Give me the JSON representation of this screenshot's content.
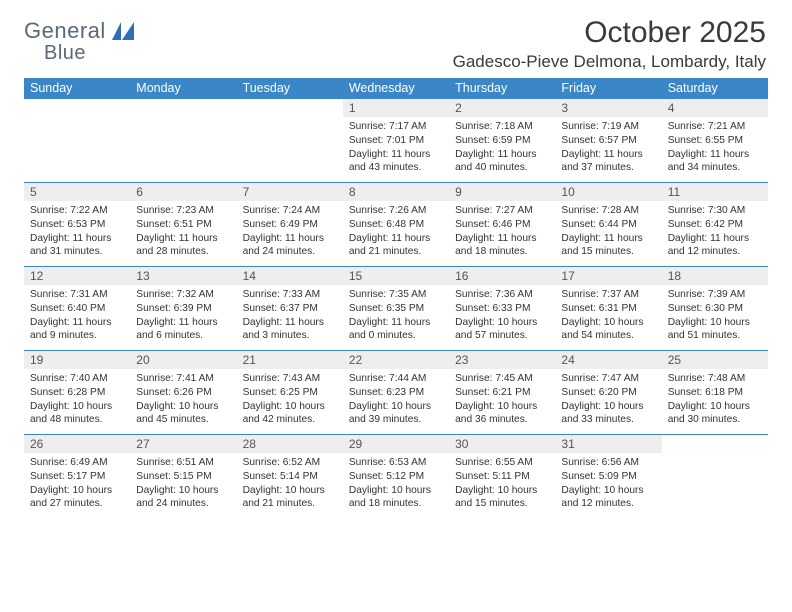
{
  "brand": {
    "word1": "General",
    "word2": "Blue"
  },
  "header": {
    "title": "October 2025",
    "subtitle": "Gadesco-Pieve Delmona, Lombardy, Italy"
  },
  "style": {
    "header_bg": "#3b86c7",
    "header_fg": "#ffffff",
    "daynum_bg": "#eeeeee",
    "row_border": "#3b86c7",
    "page_bg": "#ffffff",
    "text_color": "#333333",
    "title_fontsize": 30,
    "subtitle_fontsize": 17,
    "hdr_fontsize": 12.5,
    "cell_fontsize": 10.2
  },
  "weekdays": [
    "Sunday",
    "Monday",
    "Tuesday",
    "Wednesday",
    "Thursday",
    "Friday",
    "Saturday"
  ],
  "weeks": [
    [
      null,
      null,
      null,
      {
        "n": "1",
        "sr": "Sunrise: 7:17 AM",
        "ss": "Sunset: 7:01 PM",
        "d1": "Daylight: 11 hours",
        "d2": "and 43 minutes."
      },
      {
        "n": "2",
        "sr": "Sunrise: 7:18 AM",
        "ss": "Sunset: 6:59 PM",
        "d1": "Daylight: 11 hours",
        "d2": "and 40 minutes."
      },
      {
        "n": "3",
        "sr": "Sunrise: 7:19 AM",
        "ss": "Sunset: 6:57 PM",
        "d1": "Daylight: 11 hours",
        "d2": "and 37 minutes."
      },
      {
        "n": "4",
        "sr": "Sunrise: 7:21 AM",
        "ss": "Sunset: 6:55 PM",
        "d1": "Daylight: 11 hours",
        "d2": "and 34 minutes."
      }
    ],
    [
      {
        "n": "5",
        "sr": "Sunrise: 7:22 AM",
        "ss": "Sunset: 6:53 PM",
        "d1": "Daylight: 11 hours",
        "d2": "and 31 minutes."
      },
      {
        "n": "6",
        "sr": "Sunrise: 7:23 AM",
        "ss": "Sunset: 6:51 PM",
        "d1": "Daylight: 11 hours",
        "d2": "and 28 minutes."
      },
      {
        "n": "7",
        "sr": "Sunrise: 7:24 AM",
        "ss": "Sunset: 6:49 PM",
        "d1": "Daylight: 11 hours",
        "d2": "and 24 minutes."
      },
      {
        "n": "8",
        "sr": "Sunrise: 7:26 AM",
        "ss": "Sunset: 6:48 PM",
        "d1": "Daylight: 11 hours",
        "d2": "and 21 minutes."
      },
      {
        "n": "9",
        "sr": "Sunrise: 7:27 AM",
        "ss": "Sunset: 6:46 PM",
        "d1": "Daylight: 11 hours",
        "d2": "and 18 minutes."
      },
      {
        "n": "10",
        "sr": "Sunrise: 7:28 AM",
        "ss": "Sunset: 6:44 PM",
        "d1": "Daylight: 11 hours",
        "d2": "and 15 minutes."
      },
      {
        "n": "11",
        "sr": "Sunrise: 7:30 AM",
        "ss": "Sunset: 6:42 PM",
        "d1": "Daylight: 11 hours",
        "d2": "and 12 minutes."
      }
    ],
    [
      {
        "n": "12",
        "sr": "Sunrise: 7:31 AM",
        "ss": "Sunset: 6:40 PM",
        "d1": "Daylight: 11 hours",
        "d2": "and 9 minutes."
      },
      {
        "n": "13",
        "sr": "Sunrise: 7:32 AM",
        "ss": "Sunset: 6:39 PM",
        "d1": "Daylight: 11 hours",
        "d2": "and 6 minutes."
      },
      {
        "n": "14",
        "sr": "Sunrise: 7:33 AM",
        "ss": "Sunset: 6:37 PM",
        "d1": "Daylight: 11 hours",
        "d2": "and 3 minutes."
      },
      {
        "n": "15",
        "sr": "Sunrise: 7:35 AM",
        "ss": "Sunset: 6:35 PM",
        "d1": "Daylight: 11 hours",
        "d2": "and 0 minutes."
      },
      {
        "n": "16",
        "sr": "Sunrise: 7:36 AM",
        "ss": "Sunset: 6:33 PM",
        "d1": "Daylight: 10 hours",
        "d2": "and 57 minutes."
      },
      {
        "n": "17",
        "sr": "Sunrise: 7:37 AM",
        "ss": "Sunset: 6:31 PM",
        "d1": "Daylight: 10 hours",
        "d2": "and 54 minutes."
      },
      {
        "n": "18",
        "sr": "Sunrise: 7:39 AM",
        "ss": "Sunset: 6:30 PM",
        "d1": "Daylight: 10 hours",
        "d2": "and 51 minutes."
      }
    ],
    [
      {
        "n": "19",
        "sr": "Sunrise: 7:40 AM",
        "ss": "Sunset: 6:28 PM",
        "d1": "Daylight: 10 hours",
        "d2": "and 48 minutes."
      },
      {
        "n": "20",
        "sr": "Sunrise: 7:41 AM",
        "ss": "Sunset: 6:26 PM",
        "d1": "Daylight: 10 hours",
        "d2": "and 45 minutes."
      },
      {
        "n": "21",
        "sr": "Sunrise: 7:43 AM",
        "ss": "Sunset: 6:25 PM",
        "d1": "Daylight: 10 hours",
        "d2": "and 42 minutes."
      },
      {
        "n": "22",
        "sr": "Sunrise: 7:44 AM",
        "ss": "Sunset: 6:23 PM",
        "d1": "Daylight: 10 hours",
        "d2": "and 39 minutes."
      },
      {
        "n": "23",
        "sr": "Sunrise: 7:45 AM",
        "ss": "Sunset: 6:21 PM",
        "d1": "Daylight: 10 hours",
        "d2": "and 36 minutes."
      },
      {
        "n": "24",
        "sr": "Sunrise: 7:47 AM",
        "ss": "Sunset: 6:20 PM",
        "d1": "Daylight: 10 hours",
        "d2": "and 33 minutes."
      },
      {
        "n": "25",
        "sr": "Sunrise: 7:48 AM",
        "ss": "Sunset: 6:18 PM",
        "d1": "Daylight: 10 hours",
        "d2": "and 30 minutes."
      }
    ],
    [
      {
        "n": "26",
        "sr": "Sunrise: 6:49 AM",
        "ss": "Sunset: 5:17 PM",
        "d1": "Daylight: 10 hours",
        "d2": "and 27 minutes."
      },
      {
        "n": "27",
        "sr": "Sunrise: 6:51 AM",
        "ss": "Sunset: 5:15 PM",
        "d1": "Daylight: 10 hours",
        "d2": "and 24 minutes."
      },
      {
        "n": "28",
        "sr": "Sunrise: 6:52 AM",
        "ss": "Sunset: 5:14 PM",
        "d1": "Daylight: 10 hours",
        "d2": "and 21 minutes."
      },
      {
        "n": "29",
        "sr": "Sunrise: 6:53 AM",
        "ss": "Sunset: 5:12 PM",
        "d1": "Daylight: 10 hours",
        "d2": "and 18 minutes."
      },
      {
        "n": "30",
        "sr": "Sunrise: 6:55 AM",
        "ss": "Sunset: 5:11 PM",
        "d1": "Daylight: 10 hours",
        "d2": "and 15 minutes."
      },
      {
        "n": "31",
        "sr": "Sunrise: 6:56 AM",
        "ss": "Sunset: 5:09 PM",
        "d1": "Daylight: 10 hours",
        "d2": "and 12 minutes."
      },
      null
    ]
  ]
}
